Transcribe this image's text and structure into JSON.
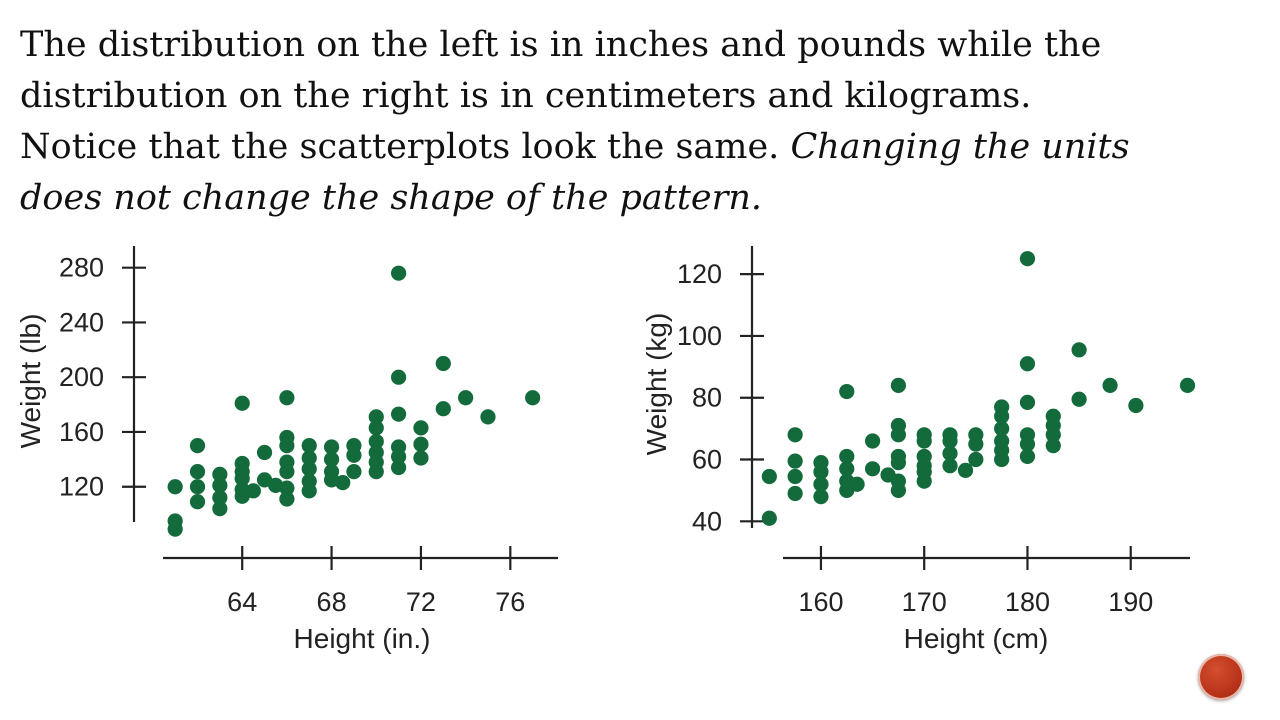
{
  "slide": {
    "line1": "The distribution on the left is in inches and pounds while the",
    "line2": "distribution on the right is in centimeters and kilograms.",
    "line3_plain": "Notice that the scatterplots look the same.  ",
    "line3_italic": "Changing the units",
    "line4_italic": "does not change the shape of the pattern."
  },
  "colors": {
    "point": "#136b3c",
    "axis": "#222222",
    "nav_button": "#b8321a"
  },
  "nav": {
    "icon": "circle-button-icon"
  },
  "chart_data": [
    {
      "type": "scatter",
      "title": "",
      "xlabel": "Height (in.)",
      "ylabel": "Weight (lb)",
      "xlim": [
        60.5,
        78
      ],
      "ylim": [
        84,
        290
      ],
      "xticks": [
        64,
        68,
        72,
        76
      ],
      "yticks": [
        120,
        160,
        200,
        240,
        280
      ],
      "grid": false,
      "points": [
        [
          61,
          120
        ],
        [
          61,
          95
        ],
        [
          61,
          89
        ],
        [
          62,
          150
        ],
        [
          62,
          131
        ],
        [
          62,
          120
        ],
        [
          62,
          109
        ],
        [
          63,
          129
        ],
        [
          63,
          121
        ],
        [
          63,
          112
        ],
        [
          63,
          104
        ],
        [
          64,
          181
        ],
        [
          64,
          137
        ],
        [
          64,
          131
        ],
        [
          64,
          126
        ],
        [
          64,
          118
        ],
        [
          64,
          113
        ],
        [
          64.5,
          117
        ],
        [
          65,
          145
        ],
        [
          65,
          125
        ],
        [
          65.5,
          121
        ],
        [
          66,
          185
        ],
        [
          66,
          156
        ],
        [
          66,
          150
        ],
        [
          66,
          138
        ],
        [
          66,
          131
        ],
        [
          66,
          119
        ],
        [
          66,
          111
        ],
        [
          67,
          150
        ],
        [
          67,
          141
        ],
        [
          67,
          133
        ],
        [
          67,
          124
        ],
        [
          67,
          117
        ],
        [
          68,
          149
        ],
        [
          68,
          140
        ],
        [
          68,
          131
        ],
        [
          68,
          125
        ],
        [
          68.5,
          123
        ],
        [
          69,
          150
        ],
        [
          69,
          143
        ],
        [
          69,
          131
        ],
        [
          70,
          171
        ],
        [
          70,
          163
        ],
        [
          70,
          153
        ],
        [
          70,
          145
        ],
        [
          70,
          138
        ],
        [
          70,
          131
        ],
        [
          71,
          276
        ],
        [
          71,
          200
        ],
        [
          71,
          173
        ],
        [
          71,
          149
        ],
        [
          71,
          142
        ],
        [
          71,
          134
        ],
        [
          72,
          163
        ],
        [
          72,
          151
        ],
        [
          72,
          141
        ],
        [
          73,
          210
        ],
        [
          73,
          177
        ],
        [
          74,
          185
        ],
        [
          75,
          171
        ],
        [
          77,
          185
        ]
      ]
    },
    {
      "type": "scatter",
      "title": "",
      "xlabel": "Height (cm)",
      "ylabel": "Weight (kg)",
      "xlim": [
        154,
        197
      ],
      "ylim": [
        38,
        128
      ],
      "xticks": [
        160,
        170,
        180,
        190
      ],
      "yticks": [
        40,
        60,
        80,
        100,
        120
      ],
      "grid": false,
      "points": [
        [
          155,
          54.5
        ],
        [
          155,
          41
        ],
        [
          157.5,
          68
        ],
        [
          157.5,
          59.5
        ],
        [
          157.5,
          54.5
        ],
        [
          157.5,
          49
        ],
        [
          160,
          59
        ],
        [
          160,
          56
        ],
        [
          160,
          52
        ],
        [
          160,
          48
        ],
        [
          162.5,
          82
        ],
        [
          162.5,
          61
        ],
        [
          162.5,
          57
        ],
        [
          162.5,
          53
        ],
        [
          162.5,
          50
        ],
        [
          163.5,
          52
        ],
        [
          165,
          66
        ],
        [
          165,
          57
        ],
        [
          166.5,
          55
        ],
        [
          167.5,
          84
        ],
        [
          167.5,
          71
        ],
        [
          167.5,
          68
        ],
        [
          167.5,
          61
        ],
        [
          167.5,
          59
        ],
        [
          167.5,
          53
        ],
        [
          167.5,
          50
        ],
        [
          170,
          68
        ],
        [
          170,
          66
        ],
        [
          170,
          61
        ],
        [
          170,
          58
        ],
        [
          170,
          56
        ],
        [
          170,
          53
        ],
        [
          172.5,
          68
        ],
        [
          172.5,
          66
        ],
        [
          172.5,
          62
        ],
        [
          172.5,
          58
        ],
        [
          174,
          56.5
        ],
        [
          175,
          68
        ],
        [
          175,
          65
        ],
        [
          175,
          60
        ],
        [
          177.5,
          77
        ],
        [
          177.5,
          74
        ],
        [
          177.5,
          70
        ],
        [
          177.5,
          66
        ],
        [
          177.5,
          63
        ],
        [
          177.5,
          60
        ],
        [
          180,
          125
        ],
        [
          180,
          91
        ],
        [
          180,
          78.5
        ],
        [
          180,
          68
        ],
        [
          180,
          65
        ],
        [
          180,
          61
        ],
        [
          182.5,
          74
        ],
        [
          182.5,
          71
        ],
        [
          182.5,
          68
        ],
        [
          182.5,
          64.5
        ],
        [
          185,
          95.5
        ],
        [
          185,
          79.5
        ],
        [
          188,
          84
        ],
        [
          190.5,
          77.5
        ],
        [
          195.5,
          84
        ]
      ]
    }
  ]
}
